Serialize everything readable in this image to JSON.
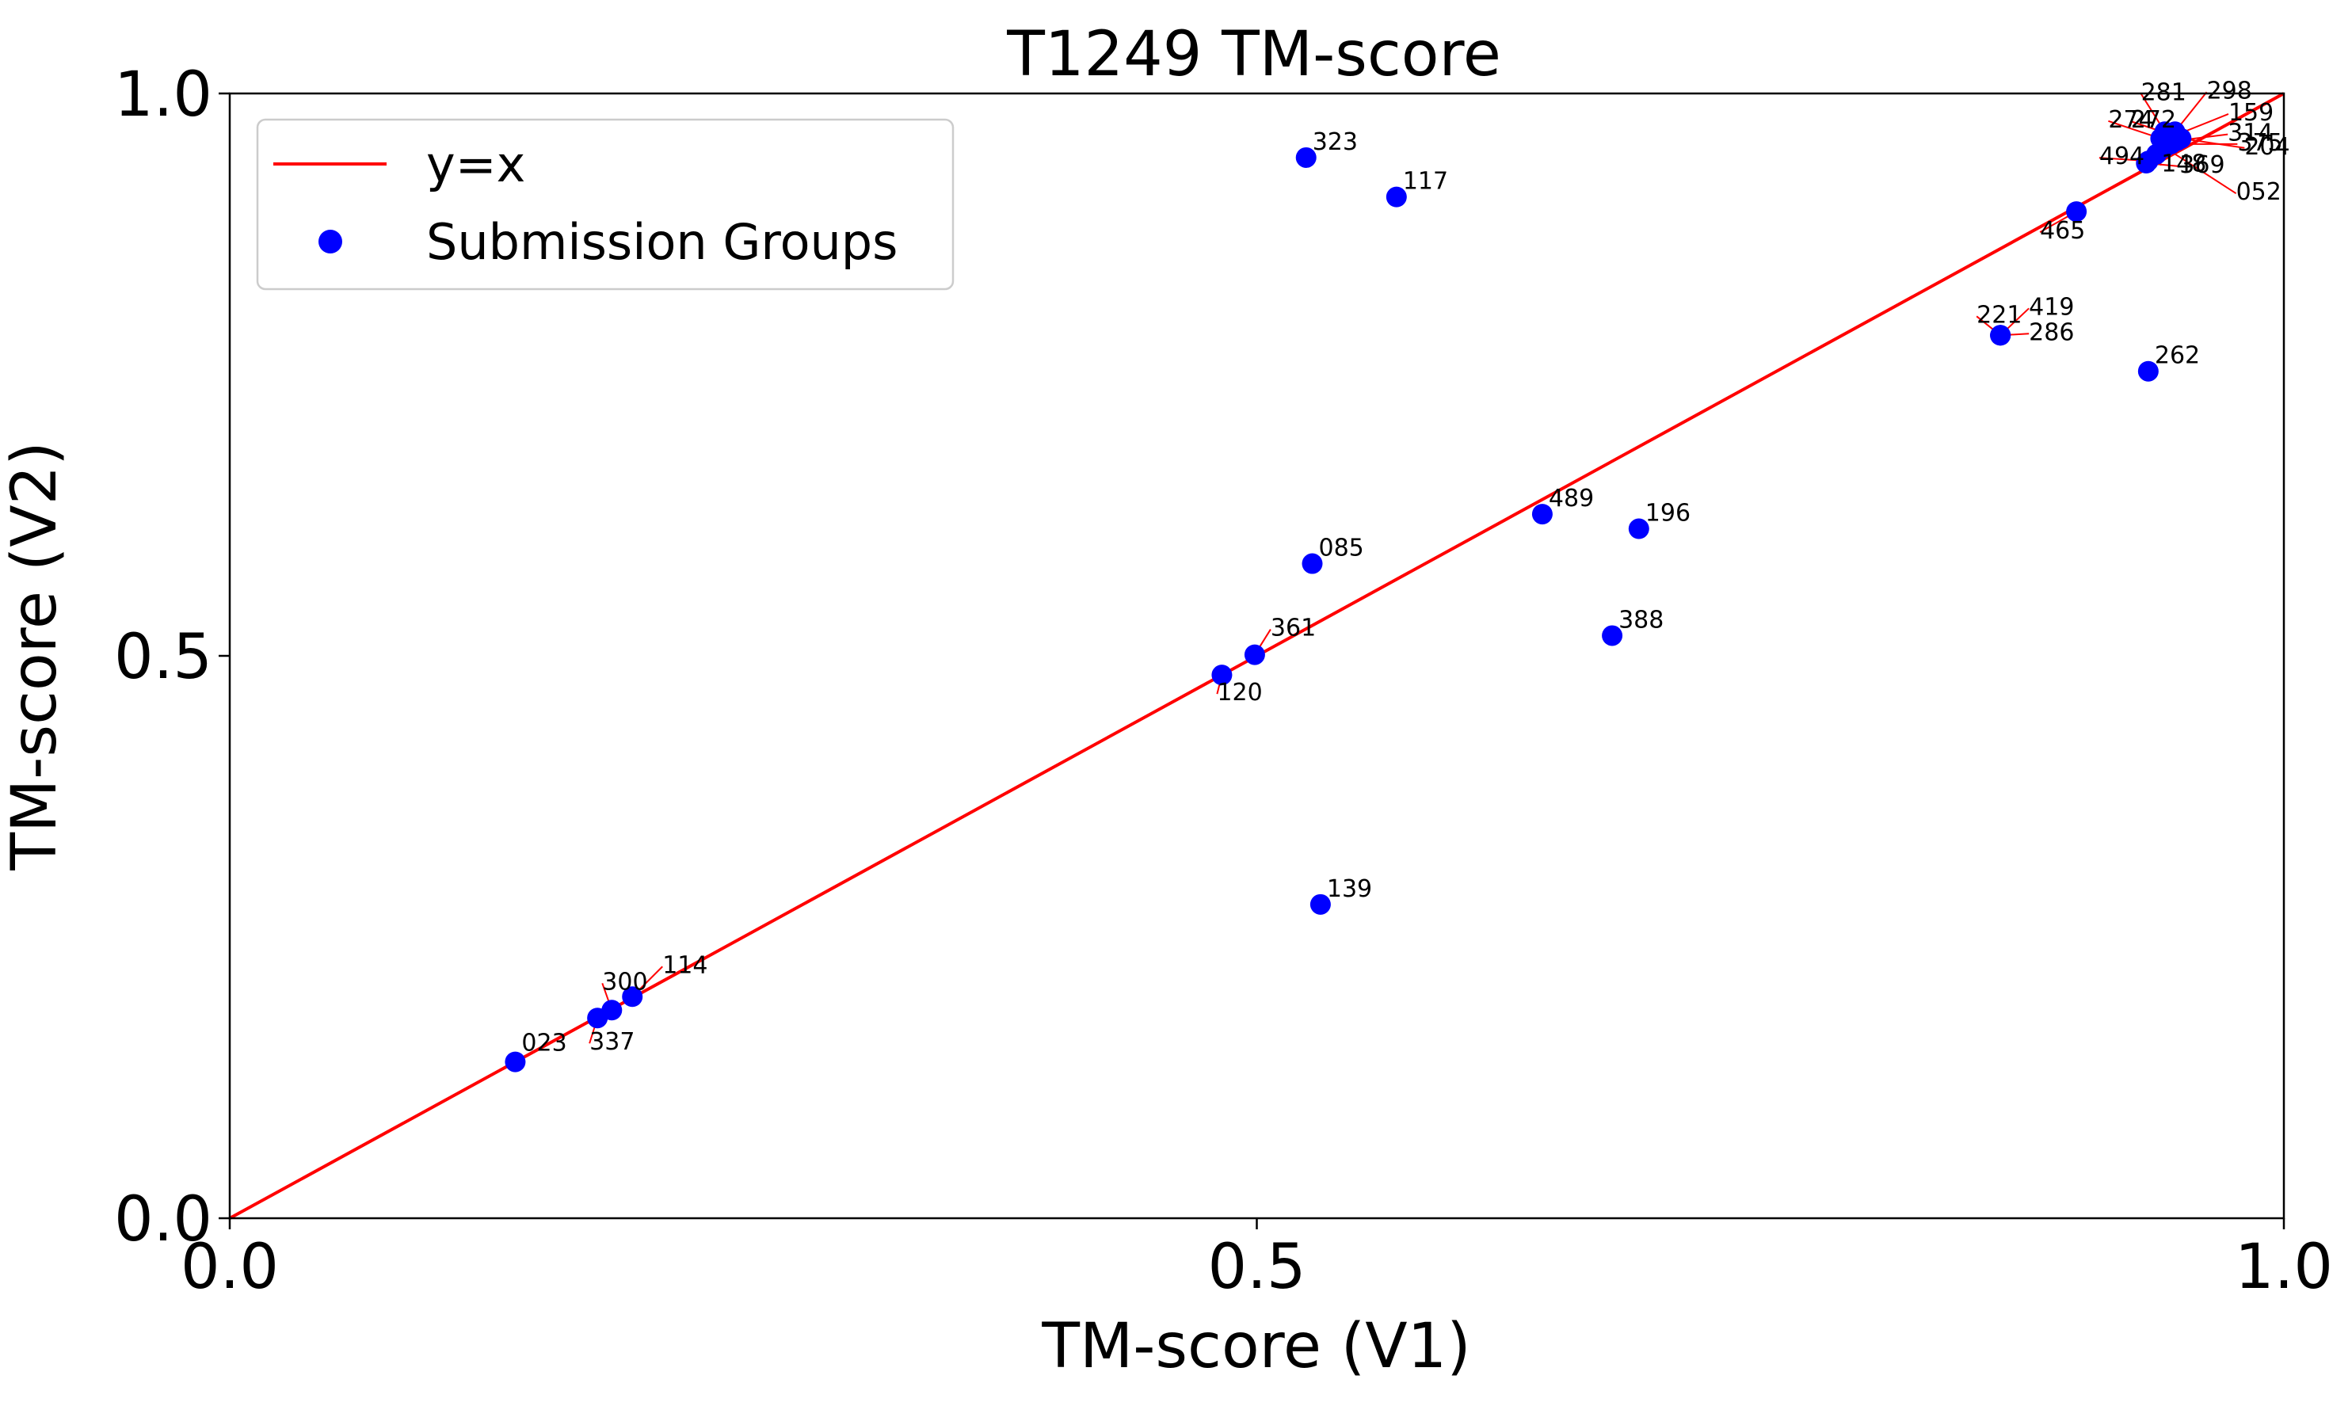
{
  "chart_data": {
    "type": "scatter",
    "title": "T1249 TM-score",
    "xlabel": "TM-score (V1)",
    "ylabel": "TM-score (V2)",
    "xlim": [
      0.0,
      1.0
    ],
    "ylim": [
      0.0,
      1.0
    ],
    "xticks": [
      "0.0",
      "0.5",
      "1.0"
    ],
    "yticks": [
      "0.0",
      "0.5",
      "1.0"
    ],
    "grid": false,
    "legend_position": "top-left",
    "colors": {
      "reference_line": "#ff0000",
      "points": "#0000ff",
      "annotation_arrow": "#ff0000"
    },
    "reference_line": {
      "name": "y=x",
      "x": [
        0.0,
        1.0
      ],
      "y": [
        0.0,
        1.0
      ]
    },
    "series": [
      {
        "name": "Submission Groups",
        "points": [
          {
            "x": 0.139,
            "y": 0.139,
            "label": "023"
          },
          {
            "x": 0.179,
            "y": 0.178,
            "label": "337"
          },
          {
            "x": 0.186,
            "y": 0.185,
            "label": "300"
          },
          {
            "x": 0.196,
            "y": 0.197,
            "label": "114"
          },
          {
            "x": 0.483,
            "y": 0.483,
            "label": "120"
          },
          {
            "x": 0.499,
            "y": 0.501,
            "label": "361"
          },
          {
            "x": 0.527,
            "y": 0.582,
            "label": "085"
          },
          {
            "x": 0.531,
            "y": 0.279,
            "label": "139"
          },
          {
            "x": 0.524,
            "y": 0.943,
            "label": "323"
          },
          {
            "x": 0.568,
            "y": 0.908,
            "label": "117"
          },
          {
            "x": 0.639,
            "y": 0.626,
            "label": "489"
          },
          {
            "x": 0.686,
            "y": 0.613,
            "label": "196"
          },
          {
            "x": 0.673,
            "y": 0.518,
            "label": "388"
          },
          {
            "x": 0.862,
            "y": 0.785,
            "label": "221"
          },
          {
            "x": 0.862,
            "y": 0.785,
            "label": "419"
          },
          {
            "x": 0.862,
            "y": 0.785,
            "label": "286"
          },
          {
            "x": 0.899,
            "y": 0.895,
            "label": "465"
          },
          {
            "x": 0.934,
            "y": 0.753,
            "label": "262"
          },
          {
            "x": 0.933,
            "y": 0.938,
            "label": "369"
          },
          {
            "x": 0.934,
            "y": 0.94,
            "label": "494"
          },
          {
            "x": 0.938,
            "y": 0.946,
            "label": "148"
          },
          {
            "x": 0.942,
            "y": 0.952,
            "label": "052"
          },
          {
            "x": 0.945,
            "y": 0.955,
            "label": "375"
          },
          {
            "x": 0.948,
            "y": 0.958,
            "label": "314"
          },
          {
            "x": 0.95,
            "y": 0.96,
            "label": "204"
          },
          {
            "x": 0.946,
            "y": 0.962,
            "label": "159"
          },
          {
            "x": 0.944,
            "y": 0.964,
            "label": "272"
          },
          {
            "x": 0.94,
            "y": 0.96,
            "label": "274"
          },
          {
            "x": 0.942,
            "y": 0.966,
            "label": "281"
          },
          {
            "x": 0.947,
            "y": 0.966,
            "label": "298"
          }
        ]
      }
    ]
  }
}
